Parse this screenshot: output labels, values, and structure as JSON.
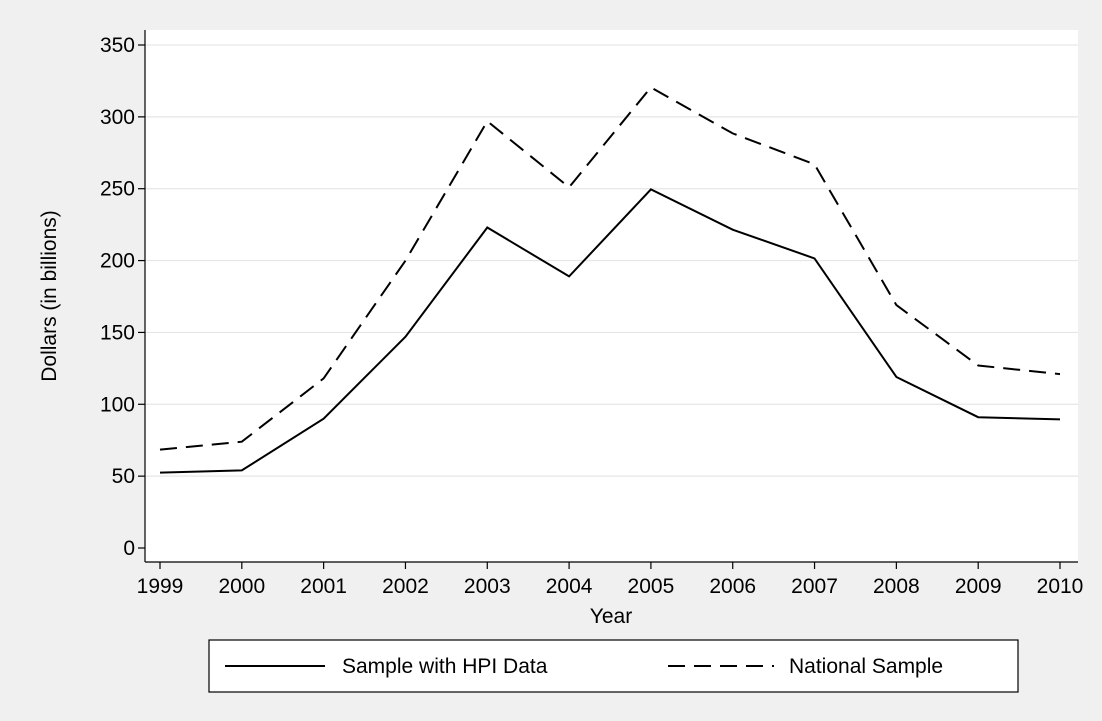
{
  "chart_data": {
    "type": "line",
    "x": [
      "1999",
      "2000",
      "2001",
      "2002",
      "2003",
      "2004",
      "2005",
      "2006",
      "2007",
      "2008",
      "2009",
      "2010"
    ],
    "series": [
      {
        "name": "Sample with HPI Data",
        "values": [
          52.5,
          54,
          90,
          147,
          223,
          189,
          249.5,
          221.5,
          201.5,
          119,
          91,
          89.5
        ],
        "line_style": "solid",
        "color": "#000000"
      },
      {
        "name": "National Sample",
        "values": [
          68.5,
          74,
          118,
          200,
          297,
          251,
          320.5,
          288.5,
          267,
          169,
          127,
          121
        ],
        "line_style": "dashed",
        "color": "#000000"
      }
    ],
    "xlabel": "Year",
    "ylabel": "Dollars (in billions)",
    "ylim": [
      0,
      350
    ],
    "yticks": [
      0,
      50,
      100,
      150,
      200,
      250,
      300,
      350
    ],
    "grid": true,
    "legend_position": "bottom"
  },
  "colors": {
    "page_background": "#f0f0f0",
    "plot_background": "#ffffff",
    "grid": "#e6e6e6",
    "ink": "#000000"
  }
}
